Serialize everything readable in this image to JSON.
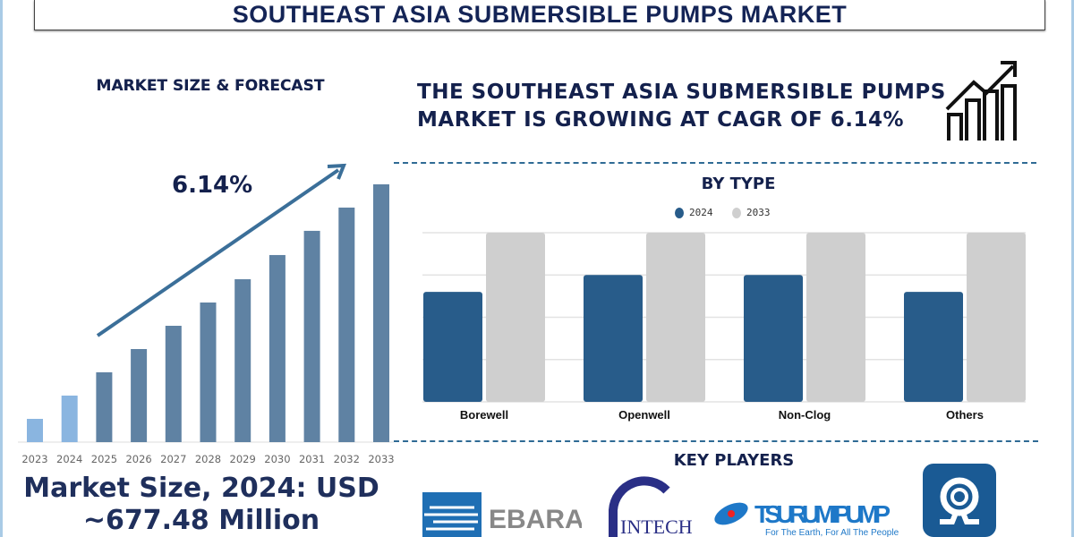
{
  "header": {
    "title": "SOUTHEAST ASIA SUBMERSIBLE PUMPS MARKET"
  },
  "left": {
    "title": "MARKET SIZE & FORECAST",
    "cagr": "6.14%",
    "market_size": "Market Size, 2024: USD ~677.48 Million"
  },
  "right": {
    "headline": "THE SOUTHEAST ASIA SUBMERSIBLE PUMPS MARKET IS GROWING AT CAGR OF 6.14%",
    "key_players_title": "KEY PLAYERS"
  },
  "key_players": [
    {
      "name": "EBARA"
    },
    {
      "name": "INTECH"
    },
    {
      "name": "TSURUMI PUMP",
      "tagline": "For The Earth, For All The People"
    },
    {
      "name": "Kirloskar-style logo"
    }
  ],
  "colors": {
    "dark_navy": "#14214d",
    "bar_forecast": "#5f82a3",
    "bar_history": "#8ab5e0",
    "series_2024": "#285c8a",
    "series_2033": "#cfcfcf"
  },
  "chart_data": [
    {
      "type": "bar",
      "title": "MARKET SIZE & FORECAST",
      "categories": [
        "2023",
        "2024",
        "2025",
        "2026",
        "2027",
        "2028",
        "2029",
        "2030",
        "2031",
        "2032",
        "2033"
      ],
      "values": [
        1,
        2,
        3,
        4,
        5,
        6,
        7,
        8.04,
        9.08,
        10.08,
        11.08
      ],
      "note": "relative scale, no axis values shown",
      "annotation": "6.14%"
    },
    {
      "type": "bar",
      "title": "BY TYPE",
      "categories": [
        "Borewell",
        "Openwell",
        "Non-Clog",
        "Others"
      ],
      "series": [
        {
          "name": "2024",
          "values": [
            2.6,
            3.0,
            3.0,
            2.6
          ]
        },
        {
          "name": "2033",
          "values": [
            4,
            4,
            4,
            4
          ]
        }
      ],
      "ylim": [
        0,
        4
      ],
      "grid": true,
      "legend": "top-center",
      "note": "relative scale, no axis values shown"
    }
  ]
}
